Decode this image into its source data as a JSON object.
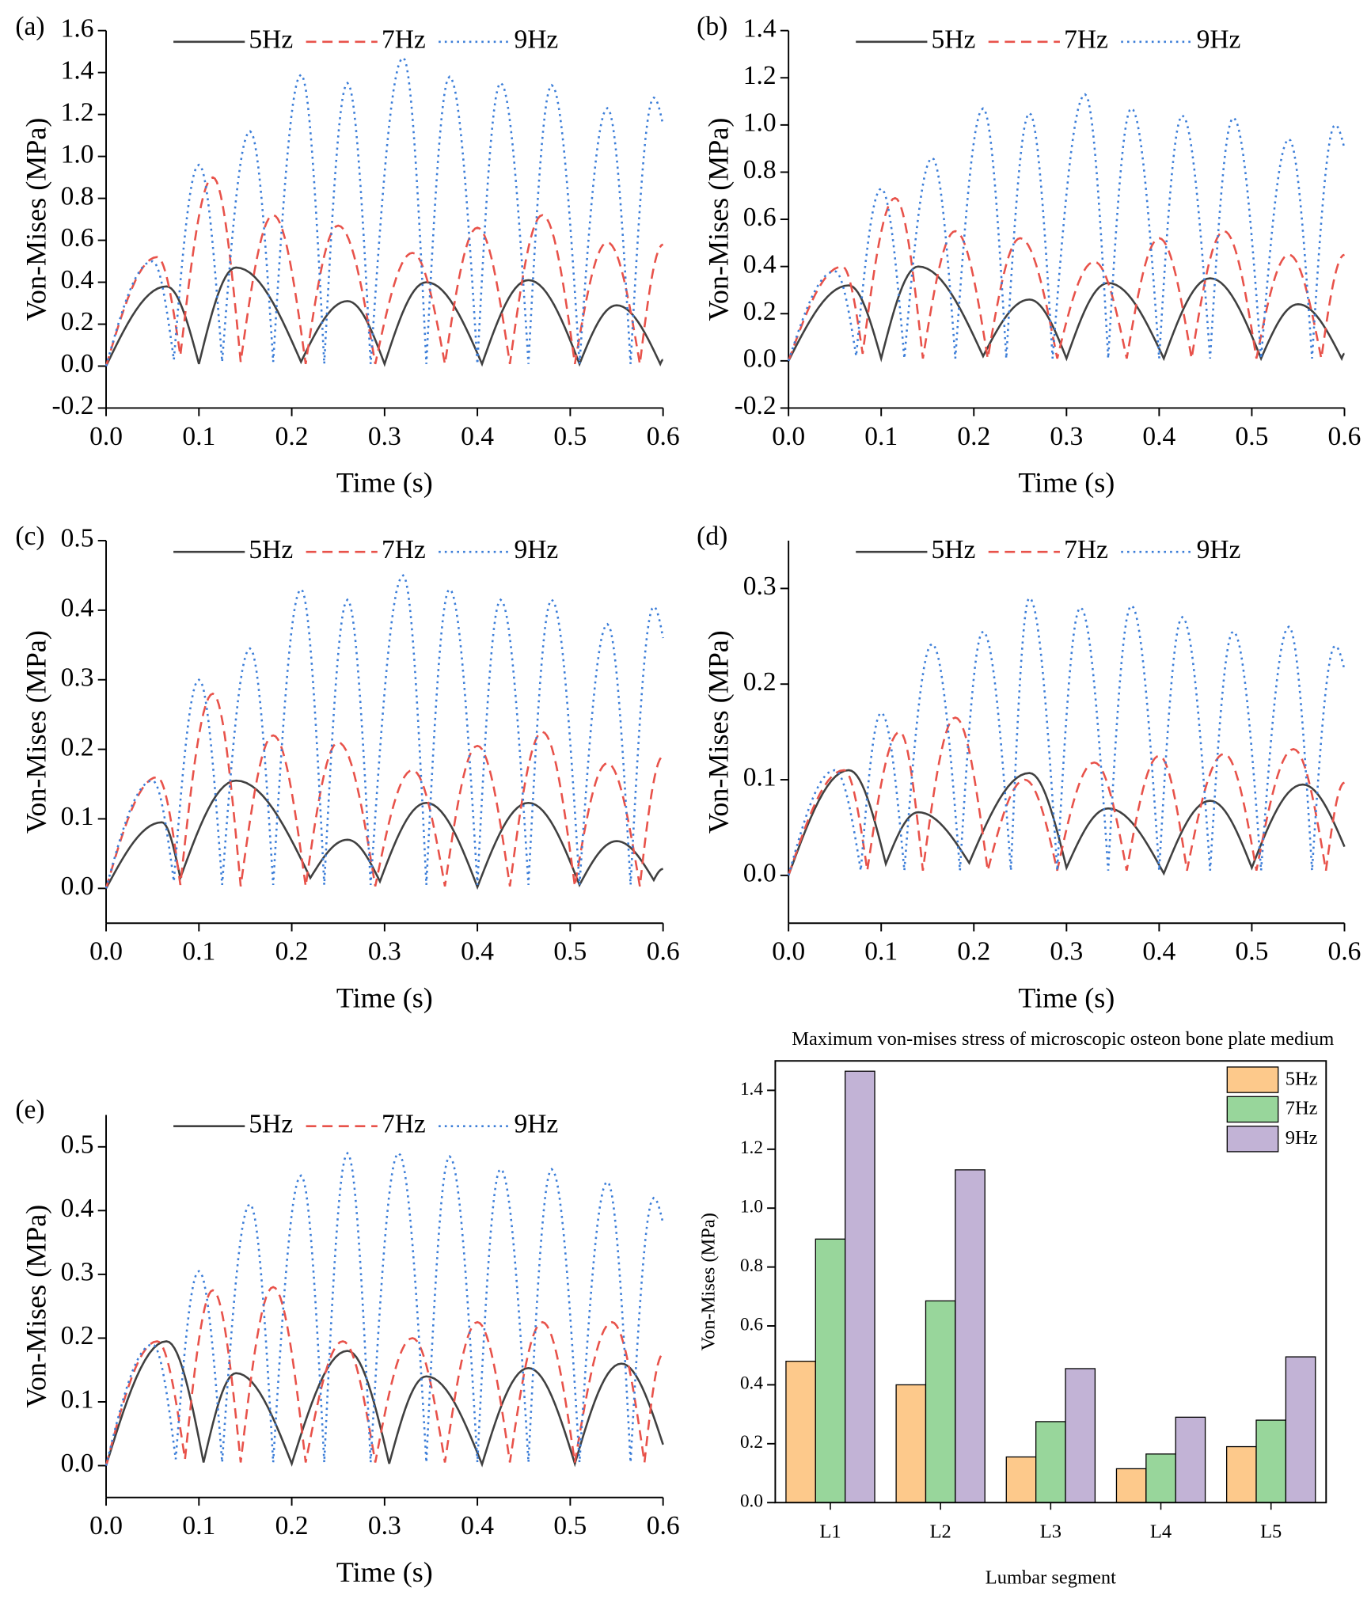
{
  "chart_data": [
    {
      "type": "line",
      "panel_label": "(a)",
      "xlabel": "Time (s)",
      "ylabel": "Von-Mises (MPa)",
      "xlim": [
        0,
        0.6
      ],
      "ylim": [
        -0.2,
        1.6
      ],
      "xticks": [
        {
          "value": 0,
          "label": "0.0"
        },
        0.1,
        0.2,
        0.3,
        0.4,
        0.5,
        0.6
      ],
      "yticks": [
        -0.2,
        {
          "value": 0,
          "label": "0.0"
        },
        0.2,
        0.4,
        0.6,
        0.8,
        {
          "value": 1,
          "label": "1.0"
        },
        1.2,
        1.4,
        1.6
      ],
      "legend": "upper center",
      "series": [
        {
          "name": "5Hz",
          "color": "#404040",
          "line_style": "solid",
          "x": [
            0,
            0.065,
            0.1,
            0.14,
            0.21,
            0.26,
            0.3,
            0.345,
            0.405,
            0.455,
            0.51,
            0.55,
            0.597,
            0.6
          ],
          "values": [
            0,
            0.38,
            0.01,
            0.47,
            0.02,
            0.31,
            0.01,
            0.4,
            0.01,
            0.41,
            0.01,
            0.29,
            0.01,
            0.03
          ]
        },
        {
          "name": "7Hz",
          "color": "#e8524a",
          "line_style": "dashed",
          "x": [
            0,
            0.055,
            0.08,
            0.115,
            0.145,
            0.18,
            0.215,
            0.25,
            0.29,
            0.33,
            0.365,
            0.4,
            0.435,
            0.47,
            0.505,
            0.54,
            0.575,
            0.6
          ],
          "values": [
            0,
            0.52,
            0.05,
            0.9,
            0.02,
            0.72,
            0.01,
            0.67,
            0.01,
            0.54,
            0.01,
            0.66,
            0.01,
            0.72,
            0.01,
            0.59,
            0.01,
            0.58
          ]
        },
        {
          "name": "9Hz",
          "color": "#3b7dd8",
          "line_style": "dotted",
          "x": [
            0,
            0.05,
            0.073,
            0.1,
            0.125,
            0.155,
            0.18,
            0.21,
            0.235,
            0.26,
            0.285,
            0.32,
            0.345,
            0.37,
            0.4,
            0.425,
            0.455,
            0.48,
            0.51,
            0.54,
            0.565,
            0.59,
            0.6
          ],
          "values": [
            0,
            0.5,
            0.03,
            0.96,
            0.02,
            1.12,
            0.02,
            1.39,
            0.01,
            1.35,
            0.01,
            1.47,
            0.01,
            1.38,
            0.01,
            1.35,
            0.01,
            1.34,
            0.01,
            1.23,
            0.01,
            1.28,
            1.15
          ]
        }
      ]
    },
    {
      "type": "line",
      "panel_label": "(b)",
      "xlabel": "Time (s)",
      "ylabel": "Von-Mises (MPa)",
      "xlim": [
        0,
        0.6
      ],
      "ylim": [
        -0.2,
        1.4
      ],
      "xticks": [
        {
          "value": 0,
          "label": "0.0"
        },
        0.1,
        0.2,
        0.3,
        0.4,
        0.5,
        0.6
      ],
      "yticks": [
        -0.2,
        {
          "value": 0,
          "label": "0.0"
        },
        0.2,
        0.4,
        0.6,
        0.8,
        {
          "value": 1,
          "label": "1.0"
        },
        1.2,
        1.4
      ],
      "legend": "upper center",
      "series": [
        {
          "name": "5Hz",
          "color": "#404040",
          "line_style": "solid",
          "x": [
            0,
            0.065,
            0.1,
            0.14,
            0.21,
            0.26,
            0.3,
            0.345,
            0.405,
            0.455,
            0.51,
            0.55,
            0.597,
            0.6
          ],
          "values": [
            0,
            0.32,
            0.01,
            0.4,
            0.02,
            0.26,
            0.01,
            0.33,
            0.01,
            0.35,
            0.01,
            0.24,
            0.01,
            0.03
          ]
        },
        {
          "name": "7Hz",
          "color": "#e8524a",
          "line_style": "dashed",
          "x": [
            0,
            0.058,
            0.08,
            0.115,
            0.145,
            0.18,
            0.215,
            0.25,
            0.29,
            0.33,
            0.365,
            0.4,
            0.435,
            0.47,
            0.505,
            0.54,
            0.575,
            0.6
          ],
          "values": [
            0,
            0.4,
            0.03,
            0.69,
            0.01,
            0.55,
            0.01,
            0.52,
            0.01,
            0.42,
            0.01,
            0.52,
            0.01,
            0.55,
            0.01,
            0.45,
            0.01,
            0.45
          ]
        },
        {
          "name": "9Hz",
          "color": "#3b7dd8",
          "line_style": "dotted",
          "x": [
            0,
            0.05,
            0.073,
            0.1,
            0.125,
            0.155,
            0.18,
            0.21,
            0.235,
            0.26,
            0.285,
            0.32,
            0.345,
            0.37,
            0.4,
            0.425,
            0.455,
            0.48,
            0.51,
            0.54,
            0.565,
            0.59,
            0.6
          ],
          "values": [
            0,
            0.38,
            0.02,
            0.73,
            0.01,
            0.86,
            0.01,
            1.07,
            0.01,
            1.05,
            0.01,
            1.13,
            0.01,
            1.07,
            0.01,
            1.04,
            0.01,
            1.03,
            0.01,
            0.94,
            0.01,
            1.0,
            0.9
          ]
        }
      ]
    },
    {
      "type": "line",
      "panel_label": "(c)",
      "xlabel": "Time (s)",
      "ylabel": "Von-Mises (MPa)",
      "xlim": [
        0,
        0.6
      ],
      "ylim": [
        -0.05,
        0.5
      ],
      "xticks": [
        {
          "value": 0,
          "label": "0.0"
        },
        0.1,
        0.2,
        0.3,
        0.4,
        0.5,
        0.6
      ],
      "yticks": [
        {
          "value": 0,
          "label": "0.0"
        },
        0.1,
        0.2,
        0.3,
        0.4,
        0.5
      ],
      "legend": "upper center",
      "series": [
        {
          "name": "5Hz",
          "color": "#404040",
          "line_style": "solid",
          "x": [
            0,
            0.06,
            0.08,
            0.14,
            0.22,
            0.26,
            0.295,
            0.345,
            0.4,
            0.455,
            0.51,
            0.55,
            0.59,
            0.6
          ],
          "values": [
            0,
            0.095,
            0.015,
            0.155,
            0.015,
            0.07,
            0.01,
            0.123,
            0.002,
            0.123,
            0.005,
            0.068,
            0.012,
            0.028
          ]
        },
        {
          "name": "7Hz",
          "color": "#e8524a",
          "line_style": "dashed",
          "x": [
            0,
            0.055,
            0.08,
            0.115,
            0.145,
            0.18,
            0.215,
            0.25,
            0.29,
            0.33,
            0.365,
            0.4,
            0.435,
            0.47,
            0.505,
            0.54,
            0.575,
            0.6
          ],
          "values": [
            0,
            0.16,
            0.005,
            0.28,
            0.003,
            0.22,
            0.003,
            0.21,
            0.003,
            0.17,
            0.003,
            0.205,
            0.003,
            0.225,
            0.003,
            0.18,
            0.003,
            0.19
          ]
        },
        {
          "name": "9Hz",
          "color": "#3b7dd8",
          "line_style": "dotted",
          "x": [
            0,
            0.05,
            0.073,
            0.1,
            0.125,
            0.155,
            0.18,
            0.21,
            0.235,
            0.26,
            0.285,
            0.32,
            0.345,
            0.37,
            0.4,
            0.425,
            0.455,
            0.48,
            0.51,
            0.54,
            0.565,
            0.59,
            0.6
          ],
          "values": [
            0,
            0.155,
            0.01,
            0.3,
            0.005,
            0.345,
            0.005,
            0.43,
            0.005,
            0.415,
            0.005,
            0.45,
            0.005,
            0.43,
            0.005,
            0.415,
            0.005,
            0.415,
            0.005,
            0.38,
            0.005,
            0.405,
            0.36
          ]
        }
      ]
    },
    {
      "type": "line",
      "panel_label": "(d)",
      "xlabel": "Time (s)",
      "ylabel": "Von-Mises (MPa)",
      "xlim": [
        0,
        0.6
      ],
      "ylim": [
        -0.05,
        0.35
      ],
      "xticks": [
        {
          "value": 0,
          "label": "0.0"
        },
        0.1,
        0.2,
        0.3,
        0.4,
        0.5,
        0.6
      ],
      "yticks": [
        {
          "value": 0,
          "label": "0.0"
        },
        0.1,
        0.2,
        0.3
      ],
      "legend": "upper center",
      "series": [
        {
          "name": "5Hz",
          "color": "#404040",
          "line_style": "solid",
          "x": [
            0,
            0.065,
            0.105,
            0.14,
            0.195,
            0.26,
            0.3,
            0.345,
            0.405,
            0.455,
            0.5,
            0.555,
            0.6
          ],
          "values": [
            0,
            0.11,
            0.012,
            0.066,
            0.013,
            0.107,
            0.008,
            0.07,
            0.002,
            0.078,
            0.008,
            0.095,
            0.03
          ]
        },
        {
          "name": "7Hz",
          "color": "#e8524a",
          "line_style": "dashed",
          "x": [
            0,
            0.06,
            0.085,
            0.12,
            0.145,
            0.18,
            0.215,
            0.255,
            0.29,
            0.33,
            0.365,
            0.4,
            0.43,
            0.47,
            0.505,
            0.545,
            0.58,
            0.6
          ],
          "values": [
            0,
            0.11,
            0.005,
            0.15,
            0.005,
            0.165,
            0.005,
            0.1,
            0.005,
            0.118,
            0.005,
            0.125,
            0.005,
            0.127,
            0.005,
            0.132,
            0.005,
            0.097
          ]
        },
        {
          "name": "9Hz",
          "color": "#3b7dd8",
          "line_style": "dotted",
          "x": [
            0,
            0.05,
            0.078,
            0.1,
            0.125,
            0.155,
            0.185,
            0.21,
            0.24,
            0.26,
            0.29,
            0.315,
            0.345,
            0.37,
            0.4,
            0.425,
            0.455,
            0.48,
            0.51,
            0.54,
            0.565,
            0.59,
            0.6
          ],
          "values": [
            0,
            0.11,
            0.005,
            0.17,
            0.005,
            0.242,
            0.005,
            0.255,
            0.005,
            0.29,
            0.005,
            0.28,
            0.005,
            0.282,
            0.005,
            0.27,
            0.005,
            0.255,
            0.005,
            0.26,
            0.005,
            0.24,
            0.215
          ]
        }
      ]
    },
    {
      "type": "line",
      "panel_label": "(e)",
      "xlabel": "Time (s)",
      "ylabel": "Von-Mises (MPa)",
      "xlim": [
        0,
        0.6
      ],
      "ylim": [
        -0.05,
        0.55
      ],
      "xticks": [
        {
          "value": 0,
          "label": "0.0"
        },
        0.1,
        0.2,
        0.3,
        0.4,
        0.5,
        0.6
      ],
      "yticks": [
        {
          "value": 0,
          "label": "0.0"
        },
        0.1,
        0.2,
        0.3,
        0.4,
        0.5
      ],
      "legend": "upper center",
      "series": [
        {
          "name": "5Hz",
          "color": "#404040",
          "line_style": "solid",
          "x": [
            0,
            0.065,
            0.105,
            0.14,
            0.2,
            0.26,
            0.305,
            0.345,
            0.405,
            0.455,
            0.505,
            0.555,
            0.6
          ],
          "values": [
            0,
            0.195,
            0.005,
            0.145,
            0.003,
            0.18,
            0.003,
            0.14,
            0.002,
            0.153,
            0.003,
            0.16,
            0.033
          ]
        },
        {
          "name": "7Hz",
          "color": "#e8524a",
          "line_style": "dashed",
          "x": [
            0,
            0.055,
            0.085,
            0.115,
            0.145,
            0.18,
            0.215,
            0.255,
            0.29,
            0.33,
            0.365,
            0.4,
            0.435,
            0.47,
            0.505,
            0.545,
            0.58,
            0.6
          ],
          "values": [
            0,
            0.195,
            0.01,
            0.275,
            0.005,
            0.28,
            0.005,
            0.195,
            0.005,
            0.2,
            0.005,
            0.225,
            0.005,
            0.225,
            0.005,
            0.225,
            0.005,
            0.175
          ]
        },
        {
          "name": "9Hz",
          "color": "#3b7dd8",
          "line_style": "dotted",
          "x": [
            0,
            0.05,
            0.075,
            0.1,
            0.125,
            0.155,
            0.18,
            0.21,
            0.235,
            0.26,
            0.285,
            0.315,
            0.345,
            0.37,
            0.4,
            0.425,
            0.455,
            0.48,
            0.51,
            0.54,
            0.565,
            0.59,
            0.6
          ],
          "values": [
            0,
            0.19,
            0.01,
            0.305,
            0.005,
            0.41,
            0.005,
            0.455,
            0.005,
            0.49,
            0.005,
            0.49,
            0.005,
            0.485,
            0.005,
            0.465,
            0.005,
            0.465,
            0.005,
            0.445,
            0.005,
            0.42,
            0.38
          ]
        }
      ]
    },
    {
      "type": "bar",
      "title": "Maximum von-mises stress of microscopic osteon bone plate medium",
      "xlabel": "Lumbar segment",
      "ylabel": "Von-Mises (MPa)",
      "categories": [
        "L1",
        "L2",
        "L3",
        "L4",
        "L5"
      ],
      "ylim": [
        0,
        1.5
      ],
      "yticks": [
        {
          "value": 0,
          "label": "0.0"
        },
        0.2,
        0.4,
        0.6,
        0.8,
        {
          "value": 1,
          "label": "1.0"
        },
        1.2,
        1.4
      ],
      "legend": "upper right",
      "edge_color": "#000000",
      "series": [
        {
          "name": "5Hz",
          "color": "#fdc98b",
          "values": [
            0.48,
            0.4,
            0.155,
            0.115,
            0.19
          ]
        },
        {
          "name": "7Hz",
          "color": "#98d69b",
          "values": [
            0.895,
            0.685,
            0.275,
            0.165,
            0.28
          ]
        },
        {
          "name": "9Hz",
          "color": "#c2b3d6",
          "values": [
            1.465,
            1.13,
            0.455,
            0.29,
            0.495
          ]
        }
      ]
    }
  ]
}
